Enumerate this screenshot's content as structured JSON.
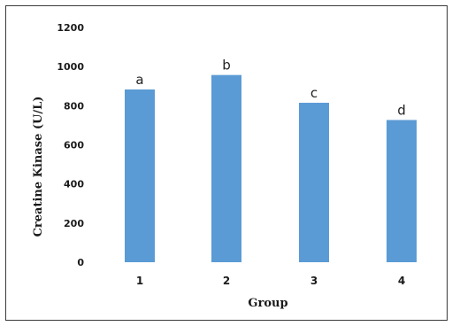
{
  "chart_data": {
    "type": "bar",
    "categories": [
      "1",
      "2",
      "3",
      "4"
    ],
    "values": [
      883,
      957,
      815,
      727
    ],
    "bar_labels": [
      "a",
      "b",
      "c",
      "d"
    ],
    "title": "",
    "xlabel": "Group",
    "ylabel": "Creatine Kinase (U/L)",
    "ylim": [
      0,
      1200
    ],
    "yticks": [
      0,
      200,
      400,
      600,
      800,
      1000,
      1200
    ],
    "ytick_labels": [
      "0",
      "200",
      "400",
      "600",
      "800",
      "1000",
      "1200"
    ],
    "grid": false,
    "legend": "none",
    "bar_color": "#5b9bd5"
  }
}
